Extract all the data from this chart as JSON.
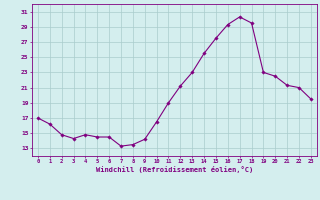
{
  "hours": [
    0,
    1,
    2,
    3,
    4,
    5,
    6,
    7,
    8,
    9,
    10,
    11,
    12,
    13,
    14,
    15,
    16,
    17,
    18,
    19,
    20,
    21,
    22,
    23
  ],
  "windchill": [
    17.0,
    16.2,
    14.8,
    14.3,
    14.8,
    14.5,
    14.5,
    13.3,
    13.5,
    14.2,
    16.5,
    19.0,
    21.2,
    23.0,
    25.5,
    27.5,
    29.3,
    30.3,
    29.5,
    23.0,
    22.5,
    21.3,
    21.0,
    19.5
  ],
  "line_color": "#800080",
  "bg_color": "#d4eeee",
  "grid_color": "#aacccc",
  "xlabel": "Windchill (Refroidissement éolien,°C)",
  "ylim": [
    12,
    32
  ],
  "xlim": [
    -0.5,
    23.5
  ],
  "yticks": [
    13,
    15,
    17,
    19,
    21,
    23,
    25,
    27,
    29,
    31
  ],
  "xticks": [
    0,
    1,
    2,
    3,
    4,
    5,
    6,
    7,
    8,
    9,
    10,
    11,
    12,
    13,
    14,
    15,
    16,
    17,
    18,
    19,
    20,
    21,
    22,
    23
  ]
}
